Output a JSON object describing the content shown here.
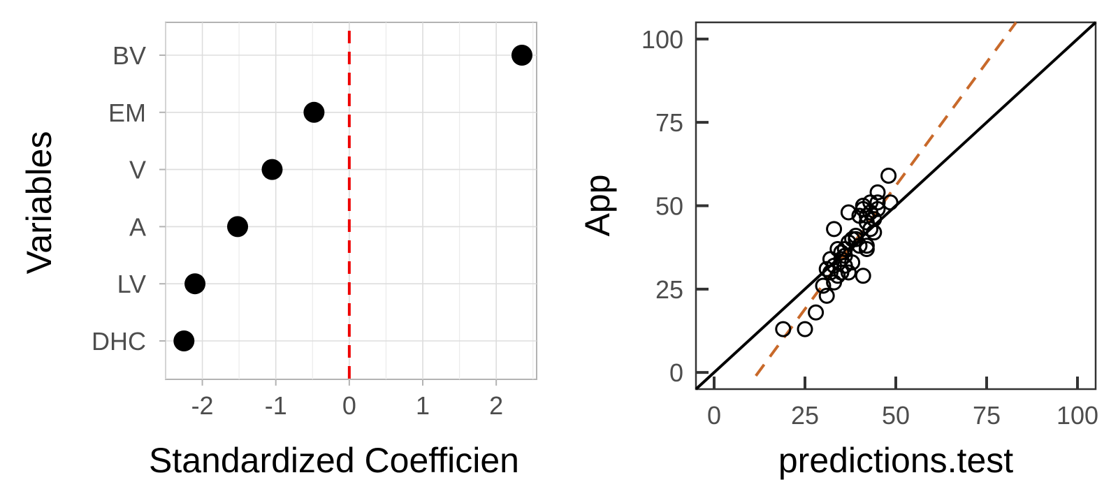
{
  "chart_data": [
    {
      "type": "scatter",
      "xlabel": "Standardized Coefficien",
      "ylabel": "Variables",
      "categories": [
        "BV",
        "EM",
        "V",
        "A",
        "LV",
        "DHC"
      ],
      "values": [
        2.35,
        -0.48,
        -1.05,
        -1.52,
        -2.1,
        -2.25
      ],
      "xlim": [
        -2.5,
        2.55
      ],
      "x_ticks": [
        -2,
        -1,
        0,
        1,
        2
      ],
      "x_tick_labels": [
        "-2",
        "-1",
        "0",
        "1",
        "2"
      ],
      "reference_line": {
        "x": 0,
        "style": "dashed",
        "color": "#ee0000"
      },
      "grid": true,
      "point_color": "#000000"
    },
    {
      "type": "scatter",
      "xlabel": "predictions.test",
      "ylabel": "App",
      "xlim": [
        -5,
        105
      ],
      "ylim": [
        -5,
        105
      ],
      "x_ticks": [
        0,
        25,
        50,
        75,
        100
      ],
      "y_ticks": [
        0,
        25,
        50,
        75,
        100
      ],
      "x_tick_labels": [
        "0",
        "25",
        "50",
        "75",
        "100"
      ],
      "y_tick_labels": [
        "0",
        "25",
        "50",
        "75",
        "100"
      ],
      "grid": false,
      "identity_line": {
        "slope": 1,
        "intercept": 0,
        "color": "#000000"
      },
      "fit_line": {
        "slope": 1.48,
        "intercept": -18,
        "style": "dashed",
        "color": "#c8692a"
      },
      "x": [
        19,
        25,
        28,
        30,
        31,
        31,
        32,
        32,
        33,
        33,
        33,
        34,
        34,
        35,
        35,
        35,
        36,
        36,
        36,
        37,
        37,
        37,
        38,
        38,
        39,
        39,
        40,
        40,
        41,
        41,
        41,
        42,
        42,
        42,
        42,
        43,
        43,
        43,
        44,
        44,
        45,
        45,
        45,
        48,
        48.5
      ],
      "y": [
        13,
        13,
        18,
        26,
        23,
        31,
        30,
        34,
        43,
        27,
        32,
        29,
        37,
        34,
        30,
        36,
        35,
        32,
        37,
        39,
        30,
        48,
        33,
        40,
        40,
        41,
        38,
        47,
        29,
        49,
        50,
        47,
        45,
        37,
        38,
        43,
        48,
        51,
        42,
        46,
        54,
        49,
        51,
        59,
        51
      ],
      "marker": "open-circle"
    }
  ]
}
